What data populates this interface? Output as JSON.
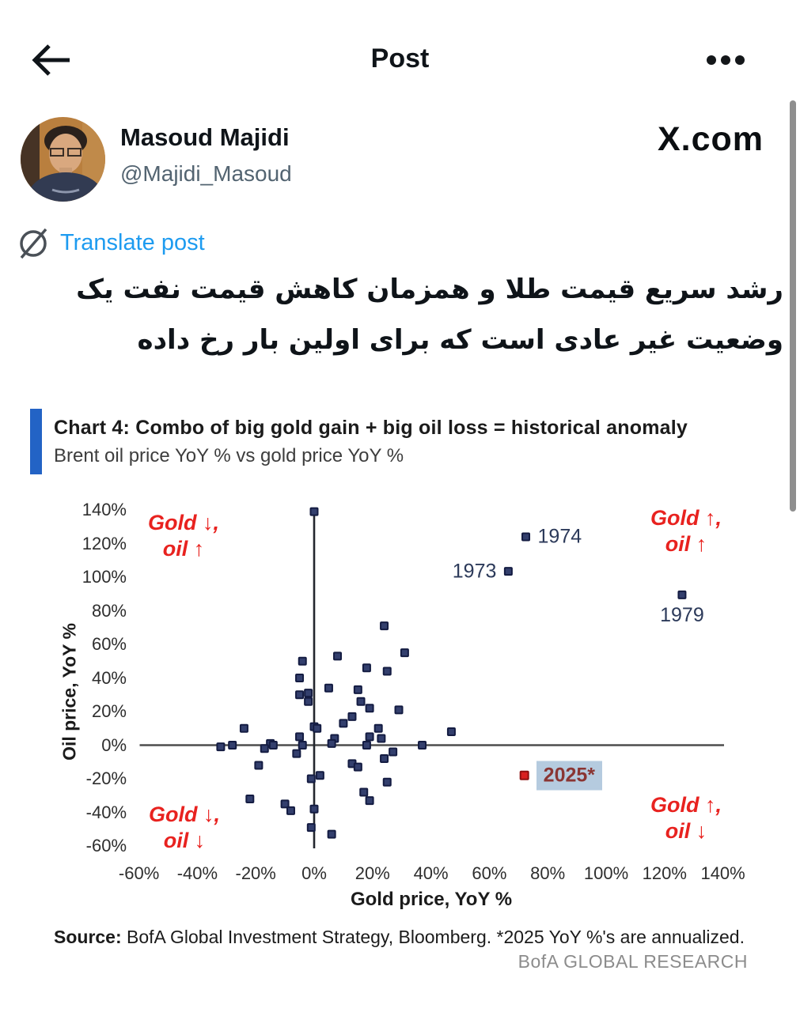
{
  "header": {
    "title": "Post"
  },
  "user": {
    "name": "Masoud Majidi",
    "handle": "@Majidi_Masoud",
    "site_logo": "X.com"
  },
  "translate": {
    "label": "Translate post"
  },
  "post_text": {
    "line1": "رشد سریع قیمت طلا و همزمان کاهش قیمت نفت یک",
    "line2": "وضعیت غیر عادی است که برای اولین بار رخ داده"
  },
  "chart_data": {
    "type": "scatter",
    "title": "Chart 4: Combo of big gold gain + big oil loss = historical anomaly",
    "subtitle": "Brent oil price YoY % vs gold price YoY %",
    "xlabel": "Gold price, YoY %",
    "ylabel": "Oil price, YoY %",
    "xlim": [
      -60,
      140
    ],
    "ylim": [
      -60,
      140
    ],
    "grid": false,
    "x_ticks": [
      {
        "v": -60,
        "label": "-60%"
      },
      {
        "v": -40,
        "label": "-40%"
      },
      {
        "v": -20,
        "label": "-20%"
      },
      {
        "v": 0,
        "label": "0%"
      },
      {
        "v": 20,
        "label": "20%"
      },
      {
        "v": 40,
        "label": "40%"
      },
      {
        "v": 60,
        "label": "60%"
      },
      {
        "v": 80,
        "label": "80%"
      },
      {
        "v": 100,
        "label": "100%"
      },
      {
        "v": 120,
        "label": "120%"
      },
      {
        "v": 140,
        "label": "140%"
      }
    ],
    "y_ticks": [
      {
        "v": 140,
        "label": "140%"
      },
      {
        "v": 120,
        "label": "120%"
      },
      {
        "v": 100,
        "label": "100%"
      },
      {
        "v": 80,
        "label": "80%"
      },
      {
        "v": 60,
        "label": "60%"
      },
      {
        "v": 40,
        "label": "40%"
      },
      {
        "v": 20,
        "label": "20%"
      },
      {
        "v": 0,
        "label": "0%"
      },
      {
        "v": -20,
        "label": "-20%"
      },
      {
        "v": -40,
        "label": "-40%"
      },
      {
        "v": -60,
        "label": "-60%"
      }
    ],
    "points": [
      [
        0,
        139
      ],
      [
        24,
        71
      ],
      [
        31,
        55
      ],
      [
        8,
        53
      ],
      [
        -4,
        50
      ],
      [
        18,
        46
      ],
      [
        25,
        44
      ],
      [
        -5,
        40
      ],
      [
        5,
        34
      ],
      [
        15,
        33
      ],
      [
        -2,
        31
      ],
      [
        -5,
        30
      ],
      [
        -2,
        26
      ],
      [
        16,
        26
      ],
      [
        19,
        22
      ],
      [
        29,
        21
      ],
      [
        13,
        17
      ],
      [
        10,
        13
      ],
      [
        -24,
        10
      ],
      [
        0,
        11
      ],
      [
        1,
        10
      ],
      [
        22,
        10
      ],
      [
        47,
        8
      ],
      [
        19,
        5
      ],
      [
        -5,
        5
      ],
      [
        23,
        4
      ],
      [
        7,
        4
      ],
      [
        6,
        1
      ],
      [
        -15,
        1
      ],
      [
        -14,
        0
      ],
      [
        -32,
        -1
      ],
      [
        -28,
        0
      ],
      [
        -4,
        0
      ],
      [
        18,
        0
      ],
      [
        37,
        0
      ],
      [
        -17,
        -2
      ],
      [
        -6,
        -5
      ],
      [
        27,
        -4
      ],
      [
        24,
        -8
      ],
      [
        -19,
        -12
      ],
      [
        13,
        -11
      ],
      [
        15,
        -13
      ],
      [
        -1,
        -20
      ],
      [
        2,
        -18
      ],
      [
        25,
        -22
      ],
      [
        -22,
        -32
      ],
      [
        17,
        -28
      ],
      [
        19,
        -33
      ],
      [
        -10,
        -35
      ],
      [
        -8,
        -39
      ],
      [
        0,
        -38
      ],
      [
        -1,
        -49
      ],
      [
        6,
        -53
      ]
    ],
    "labeled_points": [
      {
        "label": "1974",
        "x": 72.5,
        "y": 124,
        "placement": "right"
      },
      {
        "label": "1973",
        "x": 66.5,
        "y": 103.5,
        "placement": "left"
      },
      {
        "label": "1979",
        "x": 126,
        "y": 89.5,
        "placement": "below"
      },
      {
        "label": "2025*",
        "x": 72,
        "y": -18,
        "placement": "right",
        "color": "red",
        "highlight": true
      }
    ],
    "annotations": {
      "top_left": [
        "Gold ↓,",
        "oil ↑"
      ],
      "top_right": [
        "Gold ↑,",
        "oil ↑"
      ],
      "bottom_left": [
        "Gold ↓,",
        "oil ↓"
      ],
      "bottom_right": [
        "Gold ↑,",
        "oil ↓"
      ]
    },
    "source": {
      "bold": "Source:",
      "text": " BofA Global Investment Strategy, Bloomberg. *2025 YoY %'s are annualized."
    },
    "branding": "BofA GLOBAL RESEARCH",
    "colors": {
      "point": "#333f6d",
      "point_border": "#141c42",
      "highlight_point": "#d92020",
      "highlight_point_border": "#8f1010",
      "annotation_red": "#e8221f",
      "label_navy": "#2c3a5a",
      "highlight_bg": "#b5cbdf",
      "highlight_text": "#8a3533",
      "accent_bar": "#2363c5",
      "axis_line": "#4d4d4d",
      "link_blue": "#1d9bf0"
    }
  }
}
